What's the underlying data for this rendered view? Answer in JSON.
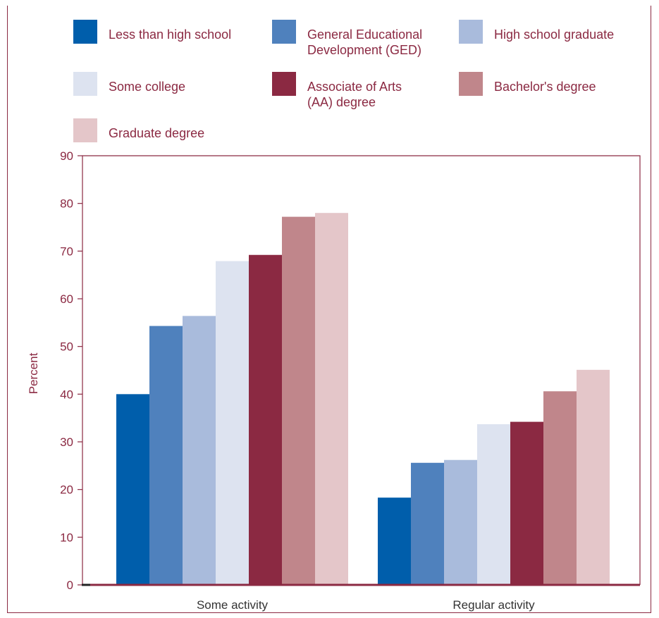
{
  "chart_data": {
    "type": "bar",
    "title": "",
    "xlabel": "",
    "ylabel": "Percent",
    "ylim": [
      0,
      90
    ],
    "yticks": [
      0,
      10,
      20,
      30,
      40,
      50,
      60,
      70,
      80,
      90
    ],
    "grid": false,
    "legend_position": "top",
    "categories": [
      "Some activity",
      "Regular activity"
    ],
    "series": [
      {
        "name": "Less than high school",
        "legend_lines": [
          "Less than high school"
        ],
        "color": "#005eab",
        "values": [
          40,
          18.3
        ]
      },
      {
        "name": "General Educational Development (GED)",
        "legend_lines": [
          "General Educational",
          "Development (GED)"
        ],
        "color": "#4f81bd",
        "values": [
          54.3,
          25.6
        ]
      },
      {
        "name": "High school graduate",
        "legend_lines": [
          "High school graduate"
        ],
        "color": "#a9bbdc",
        "values": [
          56.4,
          26.2
        ]
      },
      {
        "name": "Some college",
        "legend_lines": [
          "Some college"
        ],
        "color": "#dde3f0",
        "values": [
          67.9,
          33.7
        ]
      },
      {
        "name": "Associate of Arts (AA) degree",
        "legend_lines": [
          "Associate of Arts",
          "(AA) degree"
        ],
        "color": "#8b2942",
        "values": [
          69.2,
          34.2
        ]
      },
      {
        "name": "Bachelor's degree",
        "legend_lines": [
          "Bachelor's degree"
        ],
        "color": "#c0868b",
        "values": [
          77.2,
          40.6
        ]
      },
      {
        "name": "Graduate degree",
        "legend_lines": [
          "Graduate degree"
        ],
        "color": "#e4c6c9",
        "values": [
          78,
          45.1
        ]
      }
    ]
  }
}
